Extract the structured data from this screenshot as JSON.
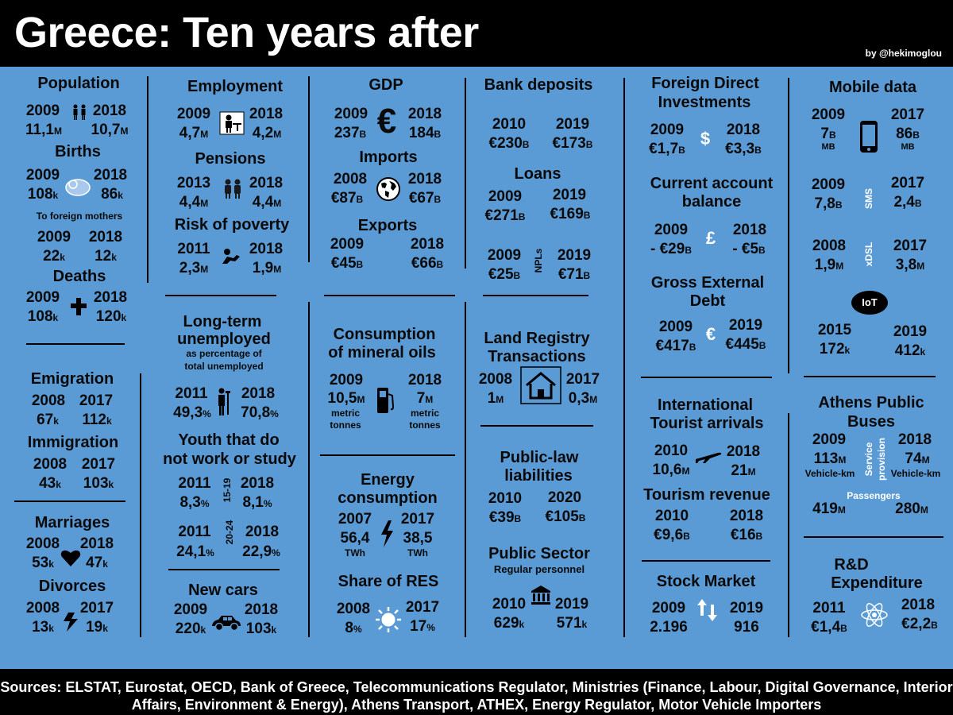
{
  "header": {
    "title": "Greece: Ten years after",
    "byline": "by @hekimoglou"
  },
  "footer": {
    "line1": "Sources: ELSTAT, Eurostat, OECD, Bank of Greece, Telecommunications Regulator, Ministries (Finance, Labour, Digital Governance, Interior",
    "line2": "Affairs, Environment & Energy), Athens Transport, ATHEX, Energy Regulator, Motor Vehicle Importers"
  },
  "population": {
    "title": "Population",
    "y1": "2009",
    "y2": "2018",
    "v1": "11,1",
    "v2": "10,7",
    "u": "M"
  },
  "births": {
    "title": "Births",
    "y1": "2009",
    "y2": "2018",
    "v1": "108",
    "v2": "86",
    "u": "k"
  },
  "foreign_mothers": {
    "title": "To foreign mothers",
    "y1": "2009",
    "y2": "2018",
    "v1": "22",
    "v2": "12",
    "u": "k"
  },
  "deaths": {
    "title": "Deaths",
    "y1": "2009",
    "y2": "2018",
    "v1": "108",
    "v2": "120",
    "u": "k"
  },
  "emigration": {
    "title": "Emigration",
    "y1": "2008",
    "y2": "2017",
    "v1": "67",
    "v2": "112",
    "u": "k"
  },
  "immigration": {
    "title": "Immigration",
    "y1": "2008",
    "y2": "2017",
    "v1": "43",
    "v2": "103",
    "u": "k"
  },
  "marriages": {
    "title": "Marriages",
    "y1": "2008",
    "y2": "2018",
    "v1": "53",
    "v2": "47",
    "u": "k"
  },
  "divorces": {
    "title": "Divorces",
    "y1": "2008",
    "y2": "2017",
    "v1": "13",
    "v2": "19",
    "u": "k"
  },
  "employment": {
    "title": "Employment",
    "y1": "2009",
    "y2": "2018",
    "v1": "4,7",
    "v2": "4,2",
    "u": "M"
  },
  "pensions": {
    "title": "Pensions",
    "y1": "2013",
    "y2": "2018",
    "v1": "4,4",
    "v2": "4,4",
    "u": "M"
  },
  "poverty": {
    "title": "Risk of poverty",
    "y1": "2011",
    "y2": "2018",
    "v1": "2,3",
    "v2": "1,9",
    "u": "M"
  },
  "longterm": {
    "title1": "Long-term",
    "title2": "unemployed",
    "sub1": "as percentage of",
    "sub2": "total unemployed",
    "y1": "2011",
    "y2": "2018",
    "v1": "49,3",
    "v2": "70,8",
    "u": "%"
  },
  "youth": {
    "title1": "Youth that do",
    "title2": "not work or study",
    "age1": "15-19",
    "age2": "20-24",
    "y1": "2011",
    "y2": "2018",
    "v1": "8,3",
    "v2": "8,1",
    "y3": "2011",
    "y4": "2018",
    "v3": "24,1",
    "v4": "22,9",
    "u": "%"
  },
  "newcars": {
    "title": "New cars",
    "y1": "2009",
    "y2": "2018",
    "v1": "220",
    "v2": "103",
    "u": "k"
  },
  "gdp": {
    "title": "GDP",
    "y1": "2009",
    "y2": "2018",
    "v1": "237",
    "v2": "184",
    "u": "B",
    "sym": "€"
  },
  "imports": {
    "title": "Imports",
    "y1": "2008",
    "y2": "2018",
    "v1": "€87",
    "v2": "€67",
    "u": "B"
  },
  "exports": {
    "title": "Exports",
    "y1": "2009",
    "y2": "2018",
    "v1": "€45",
    "v2": "€66",
    "u": "B"
  },
  "mineral": {
    "title1": "Consumption",
    "title2": "of  mineral oils",
    "y1": "2009",
    "y2": "2018",
    "v1": "10,5",
    "v2": "7",
    "u": "M",
    "unit1": "metric",
    "unit2": "tonnes"
  },
  "energy": {
    "title1": "Energy",
    "title2": "consumption",
    "y1": "2007",
    "y2": "2017",
    "v1": "56,4",
    "v2": "38,5",
    "unit": "TWh"
  },
  "res": {
    "title": "Share of RES",
    "y1": "2008",
    "y2": "2017",
    "v1": "8",
    "v2": "17",
    "u": "%"
  },
  "deposits": {
    "title": "Bank deposits",
    "y1": "2010",
    "y2": "2019",
    "v1": "€230",
    "v2": "€173",
    "u": "B"
  },
  "loans": {
    "title": "Loans",
    "y1": "2009",
    "y2": "2019",
    "v1": "€271",
    "v2": "€169",
    "u": "B"
  },
  "npls": {
    "label": "NPLs",
    "y1": "2009",
    "y2": "2019",
    "v1": "€25",
    "v2": "€71",
    "u": "B"
  },
  "land": {
    "title1": "Land Registry",
    "title2": "Transactions",
    "y1": "2008",
    "y2": "2017",
    "v1": "1",
    "v2": "0,3",
    "u": "M"
  },
  "publiclaw": {
    "title1": "Public-law",
    "title2": "liabilities",
    "y1": "2010",
    "y2": "2020",
    "v1": "€39",
    "v2": "€105",
    "u": "B"
  },
  "publicsector": {
    "title": "Public Sector",
    "sub": "Regular personnel",
    "y1": "2010",
    "y2": "2019",
    "v1": "629",
    "v2": "571",
    "u": "k"
  },
  "fdi": {
    "title1": "Foreign Direct",
    "title2": "Investments",
    "y1": "2009",
    "y2": "2018",
    "v1": "€1,7",
    "v2": "€3,3",
    "u": "B",
    "sym": "$"
  },
  "current": {
    "title1": "Current account",
    "title2": "balance",
    "y1": "2009",
    "y2": "2018",
    "v1": "- €29",
    "v2": "- €5",
    "u": "B",
    "sym": "£"
  },
  "external": {
    "title1": "Gross External",
    "title2": "Debt",
    "y1": "2009",
    "y2": "2019",
    "v1": "€417",
    "v2": "€445",
    "u": "B",
    "sym": "€"
  },
  "tourists": {
    "title1": "International",
    "title2": "Tourist arrivals",
    "y1": "2010",
    "y2": "2018",
    "v1": "10,6",
    "v2": "21",
    "u": "M"
  },
  "tourism": {
    "title": "Tourism revenue",
    "y1": "2010",
    "y2": "2018",
    "v1": "€9,6",
    "v2": "€16",
    "u": "B"
  },
  "stock": {
    "title": "Stock Market",
    "y1": "2009",
    "y2": "2019",
    "v1": "2.196",
    "v2": "916"
  },
  "mobile": {
    "title": "Mobile data",
    "y1": "2009",
    "y2": "2017",
    "v1": "7",
    "v2": "86",
    "u": "B",
    "unit": "MB"
  },
  "sms": {
    "label": "SMS",
    "y1": "2009",
    "y2": "2017",
    "v1": "7,8",
    "v2": "2,4",
    "u": "B"
  },
  "xdsl": {
    "label": "xDSL",
    "y1": "2008",
    "y2": "2017",
    "v1": "1,9",
    "v2": "3,8",
    "u": "M"
  },
  "iot": {
    "label": "IoT",
    "y1": "2015",
    "y2": "2019",
    "v1": "172",
    "v2": "412",
    "u": "k"
  },
  "buses": {
    "title1": "Athens Public",
    "title2": "Buses",
    "label1": "Service",
    "label2": "provision",
    "y1": "2009",
    "y2": "2018",
    "v1": "113",
    "v2": "74",
    "u": "M",
    "unit": "Vehicle-km",
    "passengers": "Passengers",
    "p1": "419",
    "p2": "280"
  },
  "rd": {
    "title1": "R&D",
    "title2": "Expenditure",
    "y1": "2011",
    "y2": "2018",
    "v1": "€1,4",
    "v2": "€2,2",
    "u": "B"
  }
}
